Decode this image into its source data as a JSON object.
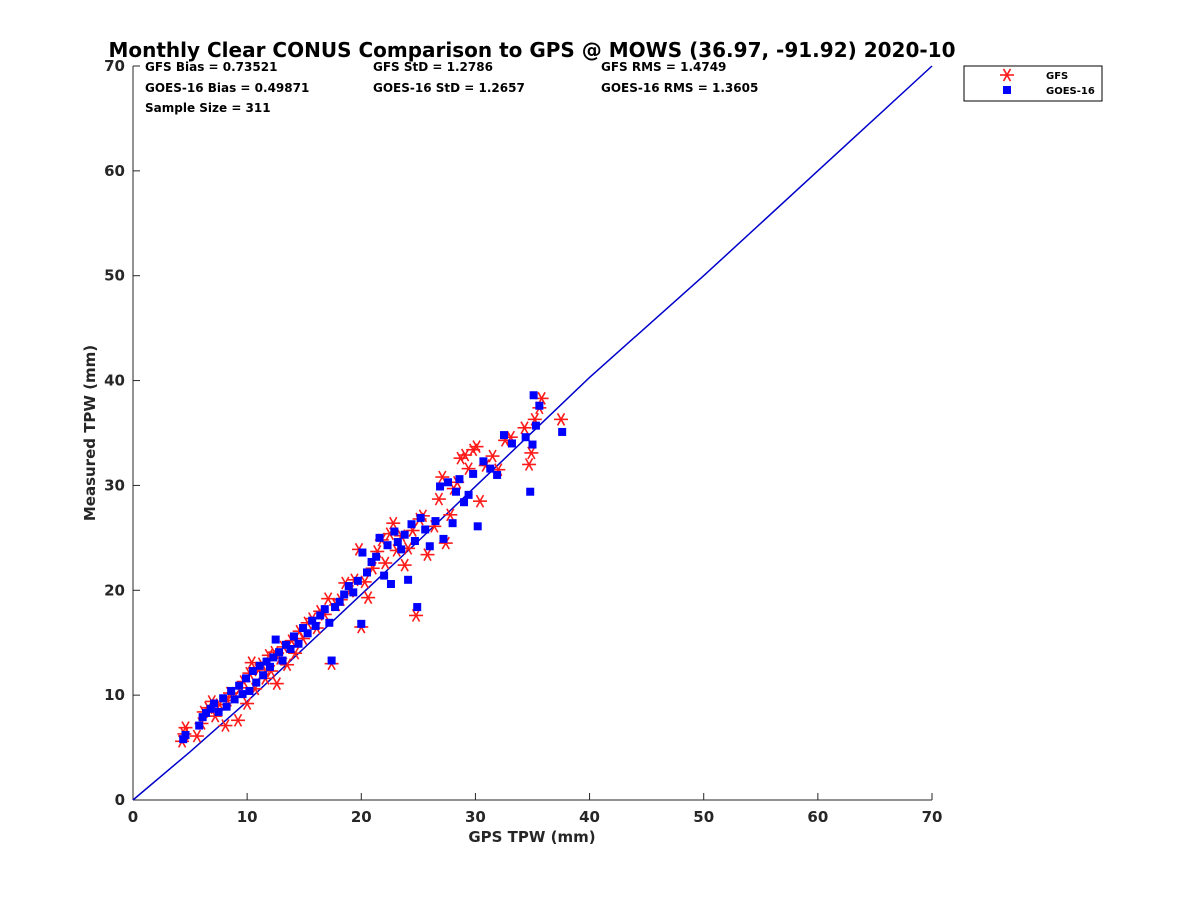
{
  "chart_data": {
    "type": "scatter",
    "title": "Monthly Clear CONUS Comparison to GPS @ MOWS (36.97, -91.92) 2020-10",
    "xlabel": "GPS TPW (mm)",
    "ylabel": "Measured TPW (mm)",
    "xlim": [
      0,
      70
    ],
    "ylim": [
      0,
      70
    ],
    "xticks": [
      0,
      10,
      20,
      30,
      40,
      50,
      60,
      70
    ],
    "yticks": [
      0,
      10,
      20,
      30,
      40,
      50,
      60,
      70
    ],
    "grid": false,
    "legend_position": "top-right outside",
    "stats": {
      "gfs_bias": "GFS Bias = 0.73521",
      "gfs_std": "GFS StD = 1.2786",
      "gfs_rms": "GFS RMS = 1.4749",
      "goes_bias": "GOES-16 Bias = 0.49871",
      "goes_std": "GOES-16 StD = 1.2657",
      "goes_rms": "GOES-16 RMS = 1.3605",
      "sample_size": "Sample Size = 311"
    },
    "reference_line": {
      "color": "#0000cc",
      "points": [
        [
          0,
          0
        ],
        [
          5,
          4.6
        ],
        [
          10,
          9.4
        ],
        [
          15,
          14.5
        ],
        [
          20,
          19.6
        ],
        [
          25,
          24.7
        ],
        [
          30,
          29.9
        ],
        [
          35,
          35.1
        ],
        [
          40,
          40.3
        ],
        [
          50,
          50.0
        ],
        [
          60,
          60.0
        ],
        [
          70,
          70.0
        ]
      ]
    },
    "series": [
      {
        "name": "GFS",
        "marker": "asterisk",
        "color": "#ff1a1a",
        "points": [
          [
            4.3,
            5.6
          ],
          [
            4.5,
            6.3
          ],
          [
            4.6,
            6.9
          ],
          [
            5.6,
            6.1
          ],
          [
            6.0,
            7.3
          ],
          [
            6.2,
            8.4
          ],
          [
            6.6,
            8.8
          ],
          [
            6.9,
            9.4
          ],
          [
            7.2,
            8.0
          ],
          [
            7.6,
            9.1
          ],
          [
            8.1,
            7.1
          ],
          [
            8.3,
            9.5
          ],
          [
            8.5,
            10.2
          ],
          [
            8.9,
            9.8
          ],
          [
            9.2,
            7.6
          ],
          [
            9.4,
            10.7
          ],
          [
            9.7,
            11.3
          ],
          [
            10.0,
            9.2
          ],
          [
            10.2,
            12.1
          ],
          [
            10.4,
            13.1
          ],
          [
            10.7,
            10.6
          ],
          [
            11.0,
            12.4
          ],
          [
            11.3,
            13.0
          ],
          [
            11.6,
            11.6
          ],
          [
            11.9,
            13.8
          ],
          [
            12.1,
            12.3
          ],
          [
            12.4,
            14.1
          ],
          [
            12.6,
            11.1
          ],
          [
            12.9,
            13.5
          ],
          [
            13.2,
            14.6
          ],
          [
            13.5,
            12.9
          ],
          [
            13.9,
            15.2
          ],
          [
            14.2,
            14.0
          ],
          [
            14.6,
            16.1
          ],
          [
            14.9,
            15.4
          ],
          [
            15.3,
            16.9
          ],
          [
            15.7,
            17.3
          ],
          [
            16.1,
            16.4
          ],
          [
            16.4,
            18.0
          ],
          [
            16.8,
            17.7
          ],
          [
            17.1,
            19.2
          ],
          [
            17.4,
            13.0
          ],
          [
            17.8,
            18.6
          ],
          [
            18.2,
            19.1
          ],
          [
            18.6,
            20.7
          ],
          [
            19.0,
            19.9
          ],
          [
            19.4,
            21.0
          ],
          [
            19.8,
            23.9
          ],
          [
            20.0,
            16.5
          ],
          [
            20.3,
            20.8
          ],
          [
            20.6,
            19.3
          ],
          [
            21.0,
            22.1
          ],
          [
            21.4,
            23.7
          ],
          [
            21.8,
            24.8
          ],
          [
            22.1,
            22.6
          ],
          [
            22.5,
            25.4
          ],
          [
            22.8,
            26.4
          ],
          [
            23.1,
            23.8
          ],
          [
            23.5,
            25.2
          ],
          [
            23.8,
            22.4
          ],
          [
            24.1,
            24.0
          ],
          [
            24.5,
            25.7
          ],
          [
            24.8,
            17.6
          ],
          [
            25.1,
            26.8
          ],
          [
            25.4,
            27.1
          ],
          [
            25.8,
            23.4
          ],
          [
            26.4,
            26.1
          ],
          [
            26.8,
            28.7
          ],
          [
            27.1,
            30.8
          ],
          [
            27.4,
            24.5
          ],
          [
            27.8,
            27.2
          ],
          [
            28.1,
            29.7
          ],
          [
            28.4,
            30.3
          ],
          [
            28.7,
            32.6
          ],
          [
            29.1,
            32.9
          ],
          [
            29.4,
            31.6
          ],
          [
            29.8,
            33.4
          ],
          [
            30.1,
            33.7
          ],
          [
            30.4,
            28.5
          ],
          [
            30.9,
            31.9
          ],
          [
            31.5,
            32.8
          ],
          [
            32.0,
            31.5
          ],
          [
            32.6,
            34.3
          ],
          [
            33.1,
            34.6
          ],
          [
            34.3,
            35.5
          ],
          [
            34.7,
            32.0
          ],
          [
            34.9,
            33.1
          ],
          [
            35.2,
            36.3
          ],
          [
            35.6,
            37.4
          ],
          [
            35.8,
            38.3
          ],
          [
            37.5,
            36.3
          ]
        ]
      },
      {
        "name": "GOES-16",
        "marker": "square",
        "color": "#0000ff",
        "points": [
          [
            4.4,
            5.8
          ],
          [
            4.6,
            6.2
          ],
          [
            5.8,
            7.1
          ],
          [
            6.1,
            7.9
          ],
          [
            6.4,
            8.3
          ],
          [
            6.8,
            8.7
          ],
          [
            7.1,
            9.2
          ],
          [
            7.5,
            8.4
          ],
          [
            7.9,
            9.7
          ],
          [
            8.2,
            8.9
          ],
          [
            8.6,
            10.4
          ],
          [
            8.9,
            9.6
          ],
          [
            9.3,
            10.9
          ],
          [
            9.6,
            10.1
          ],
          [
            9.9,
            11.6
          ],
          [
            10.2,
            10.4
          ],
          [
            10.5,
            12.3
          ],
          [
            10.8,
            11.2
          ],
          [
            11.1,
            12.8
          ],
          [
            11.4,
            11.9
          ],
          [
            11.7,
            13.2
          ],
          [
            12.0,
            12.7
          ],
          [
            12.3,
            13.6
          ],
          [
            12.5,
            15.3
          ],
          [
            12.8,
            14.1
          ],
          [
            13.1,
            13.3
          ],
          [
            13.4,
            14.8
          ],
          [
            13.8,
            14.4
          ],
          [
            14.1,
            15.6
          ],
          [
            14.5,
            14.9
          ],
          [
            14.9,
            16.4
          ],
          [
            15.3,
            15.9
          ],
          [
            15.7,
            17.1
          ],
          [
            16.0,
            16.6
          ],
          [
            16.4,
            17.6
          ],
          [
            16.8,
            18.2
          ],
          [
            17.2,
            16.9
          ],
          [
            17.4,
            13.3
          ],
          [
            17.7,
            18.4
          ],
          [
            18.1,
            18.9
          ],
          [
            18.5,
            19.6
          ],
          [
            18.9,
            20.4
          ],
          [
            19.3,
            19.8
          ],
          [
            19.7,
            20.9
          ],
          [
            20.0,
            16.8
          ],
          [
            20.1,
            23.6
          ],
          [
            20.5,
            21.7
          ],
          [
            20.9,
            22.7
          ],
          [
            21.3,
            23.2
          ],
          [
            21.6,
            25.0
          ],
          [
            22.0,
            21.4
          ],
          [
            22.3,
            24.3
          ],
          [
            22.6,
            20.6
          ],
          [
            22.9,
            25.6
          ],
          [
            23.2,
            24.6
          ],
          [
            23.5,
            23.9
          ],
          [
            23.8,
            25.3
          ],
          [
            24.1,
            21.0
          ],
          [
            24.4,
            26.3
          ],
          [
            24.7,
            24.7
          ],
          [
            24.9,
            18.4
          ],
          [
            25.2,
            26.9
          ],
          [
            25.6,
            25.8
          ],
          [
            26.0,
            24.2
          ],
          [
            26.5,
            26.6
          ],
          [
            26.9,
            29.9
          ],
          [
            27.2,
            24.9
          ],
          [
            27.6,
            30.3
          ],
          [
            28.0,
            26.4
          ],
          [
            28.3,
            29.4
          ],
          [
            28.6,
            30.6
          ],
          [
            29.0,
            28.4
          ],
          [
            29.4,
            29.1
          ],
          [
            29.8,
            31.1
          ],
          [
            30.2,
            26.1
          ],
          [
            30.7,
            32.3
          ],
          [
            31.3,
            31.6
          ],
          [
            31.9,
            31.0
          ],
          [
            32.5,
            34.8
          ],
          [
            33.2,
            34.0
          ],
          [
            34.4,
            34.6
          ],
          [
            34.8,
            29.4
          ],
          [
            35.0,
            33.9
          ],
          [
            35.1,
            38.6
          ],
          [
            35.3,
            35.7
          ],
          [
            35.6,
            37.6
          ],
          [
            37.6,
            35.1
          ]
        ]
      }
    ]
  }
}
